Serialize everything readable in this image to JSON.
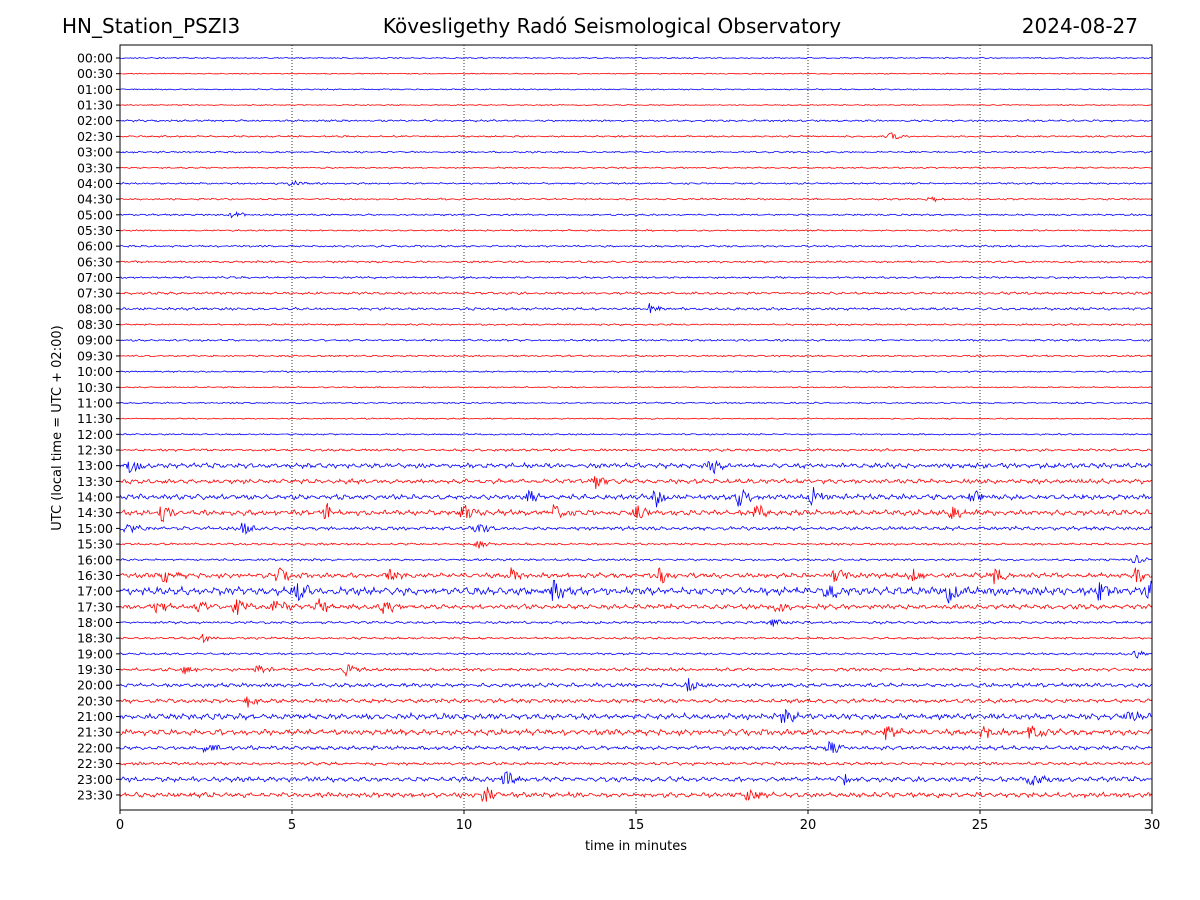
{
  "header": {
    "station": "HN_Station_PSZI3",
    "observatory": "Kövesligethy Radó Seismological Observatory",
    "date": "2024-08-27"
  },
  "chart_data": {
    "type": "line",
    "title": "Kövesligethy Radó Seismological Observatory",
    "xlabel": "time in minutes",
    "ylabel": "UTC (local time = UTC + 02:00)",
    "xlim": [
      0,
      30
    ],
    "xticks": [
      0,
      5,
      10,
      15,
      20,
      25,
      30
    ],
    "xtick_labels": [
      "0",
      "5",
      "10",
      "15",
      "20",
      "25",
      "30"
    ],
    "vertical_gridlines": [
      5,
      10,
      15,
      20,
      25
    ],
    "trace_colors": [
      "#0000ff",
      "#ff0000"
    ],
    "rows": [
      {
        "label": "00:00",
        "level": 0.2
      },
      {
        "label": "00:30",
        "level": 0.15
      },
      {
        "label": "01:00",
        "level": 0.2
      },
      {
        "label": "01:30",
        "level": 0.15
      },
      {
        "label": "02:00",
        "level": 0.35
      },
      {
        "label": "02:30",
        "level": 0.3,
        "bursts": [
          22.4
        ]
      },
      {
        "label": "03:00",
        "level": 0.3
      },
      {
        "label": "03:30",
        "level": 0.25
      },
      {
        "label": "04:00",
        "level": 0.3,
        "bursts": [
          5.0
        ]
      },
      {
        "label": "04:30",
        "level": 0.3,
        "bursts": [
          23.5
        ]
      },
      {
        "label": "05:00",
        "level": 0.3,
        "bursts": [
          3.3
        ]
      },
      {
        "label": "05:30",
        "level": 0.25
      },
      {
        "label": "06:00",
        "level": 0.35
      },
      {
        "label": "06:30",
        "level": 0.35
      },
      {
        "label": "07:00",
        "level": 0.35
      },
      {
        "label": "07:30",
        "level": 0.45
      },
      {
        "label": "08:00",
        "level": 0.5,
        "bursts": [
          15.4
        ]
      },
      {
        "label": "08:30",
        "level": 0.3
      },
      {
        "label": "09:00",
        "level": 0.35
      },
      {
        "label": "09:30",
        "level": 0.3
      },
      {
        "label": "10:00",
        "level": 0.25
      },
      {
        "label": "10:30",
        "level": 0.2
      },
      {
        "label": "11:00",
        "level": 0.25
      },
      {
        "label": "11:30",
        "level": 0.2
      },
      {
        "label": "12:00",
        "level": 0.25
      },
      {
        "label": "12:30",
        "level": 0.45
      },
      {
        "label": "13:00",
        "level": 1.0,
        "bursts": [
          0.3,
          17.2
        ]
      },
      {
        "label": "13:30",
        "level": 0.9,
        "bursts": [
          13.8
        ]
      },
      {
        "label": "14:00",
        "level": 1.1,
        "bursts": [
          11.9,
          15.6,
          18.0,
          20.1,
          24.8
        ]
      },
      {
        "label": "14:30",
        "level": 1.1,
        "bursts": [
          1.2,
          6.0,
          10.0,
          12.6,
          15.0,
          18.5,
          24.2
        ]
      },
      {
        "label": "15:00",
        "level": 0.7,
        "bursts": [
          0.2,
          3.6,
          10.4
        ]
      },
      {
        "label": "15:30",
        "level": 0.4,
        "bursts": [
          10.4
        ]
      },
      {
        "label": "16:00",
        "level": 0.4,
        "bursts": [
          29.5
        ]
      },
      {
        "label": "16:30",
        "level": 1.0,
        "bursts": [
          1.3,
          4.6,
          7.8,
          11.4,
          15.7,
          20.8,
          23.0,
          25.4,
          29.5
        ]
      },
      {
        "label": "17:00",
        "level": 1.6,
        "bursts": [
          5.1,
          12.6,
          20.6,
          24.1,
          28.5,
          29.9
        ]
      },
      {
        "label": "17:30",
        "level": 1.0,
        "bursts": [
          1.1,
          2.3,
          3.4,
          4.5,
          5.8,
          7.7,
          19.1
        ]
      },
      {
        "label": "18:00",
        "level": 0.5,
        "bursts": [
          19.0
        ]
      },
      {
        "label": "18:30",
        "level": 0.4,
        "bursts": [
          2.4
        ]
      },
      {
        "label": "19:00",
        "level": 0.4,
        "bursts": [
          29.5
        ]
      },
      {
        "label": "19:30",
        "level": 0.6,
        "bursts": [
          1.9,
          4.0,
          6.6
        ]
      },
      {
        "label": "20:00",
        "level": 0.8,
        "bursts": [
          16.5
        ]
      },
      {
        "label": "20:30",
        "level": 0.8,
        "bursts": [
          3.7
        ]
      },
      {
        "label": "21:00",
        "level": 1.2,
        "bursts": [
          19.3,
          29.3
        ]
      },
      {
        "label": "21:30",
        "level": 1.2,
        "bursts": [
          22.3,
          25.1,
          26.5
        ]
      },
      {
        "label": "22:00",
        "level": 0.8,
        "bursts": [
          2.5,
          20.6
        ]
      },
      {
        "label": "22:30",
        "level": 0.6
      },
      {
        "label": "23:00",
        "level": 1.0,
        "bursts": [
          11.2,
          21.0,
          26.5
        ]
      },
      {
        "label": "23:30",
        "level": 1.0,
        "bursts": [
          10.6,
          18.3
        ]
      }
    ]
  }
}
